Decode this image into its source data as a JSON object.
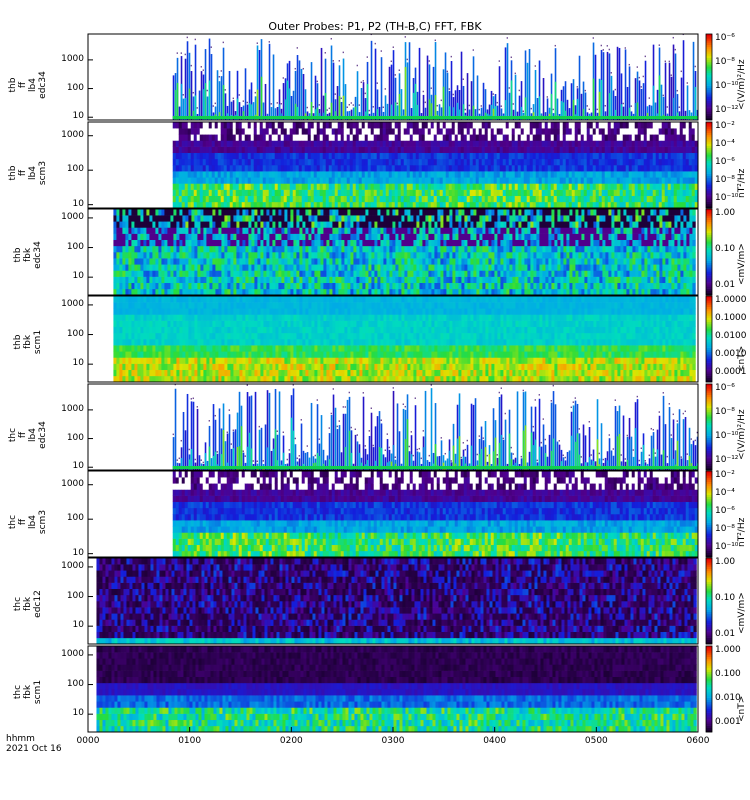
{
  "chart_data": {
    "type": "heatmap",
    "title": "Outer Probes: P1, P2 (TH-B,C) FFT, FBK",
    "x_range": [
      "0000",
      "0600"
    ],
    "x_ticks": [
      "0000",
      "0100",
      "0200",
      "0300",
      "0400",
      "0500",
      "0600"
    ],
    "x_label_lines": [
      "hhmm",
      "2021 Oct 16"
    ],
    "x_scale": "time",
    "y_scale": "log",
    "colormap": "rainbow",
    "colorbar": "right",
    "panels": [
      {
        "id": "thb-ff-edc34",
        "label_lines": [
          "thb",
          "ff",
          "lb4",
          "edc34"
        ],
        "y_ticks": [
          "10",
          "100",
          "1000"
        ],
        "y_range": [
          8,
          8000
        ],
        "style": "ff-e",
        "data_start": "0050",
        "colorbar_label": "<(V/m)²/Hz",
        "colorbar_ticks": [
          "10⁻⁶",
          "10⁻⁸",
          "10⁻¹⁰",
          "10⁻¹²"
        ],
        "colorbar_scale": "log"
      },
      {
        "id": "thb-ff-scm3",
        "label_lines": [
          "thb",
          "ff",
          "lb4",
          "scm3"
        ],
        "y_ticks": [
          "10",
          "100",
          "1000"
        ],
        "y_range": [
          8,
          2500
        ],
        "style": "ff-b",
        "data_start": "0050",
        "colorbar_label": "nT²/Hz",
        "colorbar_ticks": [
          "10⁻²",
          "10⁻⁴",
          "10⁻⁶",
          "10⁻⁸",
          "10⁻¹⁰"
        ],
        "colorbar_scale": "log"
      },
      {
        "id": "thb-fbk-edc34",
        "label_lines": [
          "thb",
          "fbk",
          "edc34"
        ],
        "y_ticks": [
          "10",
          "100",
          "1000"
        ],
        "y_range": [
          2.5,
          2000
        ],
        "style": "fbk-e-b",
        "data_start": "0015",
        "colorbar_label": "<mV/m>",
        "colorbar_ticks": [
          "1.00",
          "0.10",
          "0.01"
        ],
        "colorbar_scale": "log"
      },
      {
        "id": "thb-fbk-scm1",
        "label_lines": [
          "thb",
          "fbk",
          "scm1"
        ],
        "y_ticks": [
          "10",
          "100",
          "1000"
        ],
        "y_range": [
          2.5,
          2000
        ],
        "style": "fbk-b-b",
        "data_start": "0015",
        "colorbar_label": "<nT>",
        "colorbar_ticks": [
          "1.0000",
          "0.1000",
          "0.0100",
          "0.0010",
          "0.0001"
        ],
        "colorbar_scale": "log"
      },
      {
        "id": "thc-ff-edc34",
        "label_lines": [
          "thc",
          "ff",
          "lb4",
          "edc34"
        ],
        "y_ticks": [
          "10",
          "100",
          "1000"
        ],
        "y_range": [
          8,
          8000
        ],
        "style": "ff-e",
        "data_start": "0050",
        "colorbar_label": "<(V/m)²/Hz",
        "colorbar_ticks": [
          "10⁻⁶",
          "10⁻⁸",
          "10⁻¹⁰",
          "10⁻¹²"
        ],
        "colorbar_scale": "log"
      },
      {
        "id": "thc-ff-scm3",
        "label_lines": [
          "thc",
          "ff",
          "lb4",
          "scm3"
        ],
        "y_ticks": [
          "10",
          "100",
          "1000"
        ],
        "y_range": [
          8,
          2500
        ],
        "style": "ff-b",
        "data_start": "0050",
        "colorbar_label": "nT²/Hz",
        "colorbar_ticks": [
          "10⁻²",
          "10⁻⁴",
          "10⁻⁶",
          "10⁻⁸",
          "10⁻¹⁰"
        ],
        "colorbar_scale": "log"
      },
      {
        "id": "thc-fbk-edc12",
        "label_lines": [
          "thc",
          "fbk",
          "edc12"
        ],
        "y_ticks": [
          "10",
          "100",
          "1000"
        ],
        "y_range": [
          2.5,
          2000
        ],
        "style": "fbk-e-c",
        "data_start": "0005",
        "colorbar_label": "<mV/m>",
        "colorbar_ticks": [
          "1.00",
          "0.10",
          "0.01"
        ],
        "colorbar_scale": "log"
      },
      {
        "id": "thc-fbk-scm1",
        "label_lines": [
          "thc",
          "fbk",
          "scm1"
        ],
        "y_ticks": [
          "10",
          "100",
          "1000"
        ],
        "y_range": [
          2.5,
          2000
        ],
        "style": "fbk-b-c",
        "data_start": "0005",
        "colorbar_label": "<nT>",
        "colorbar_ticks": [
          "1.000",
          "0.100",
          "0.010",
          "0.001"
        ],
        "colorbar_scale": "log"
      }
    ]
  }
}
